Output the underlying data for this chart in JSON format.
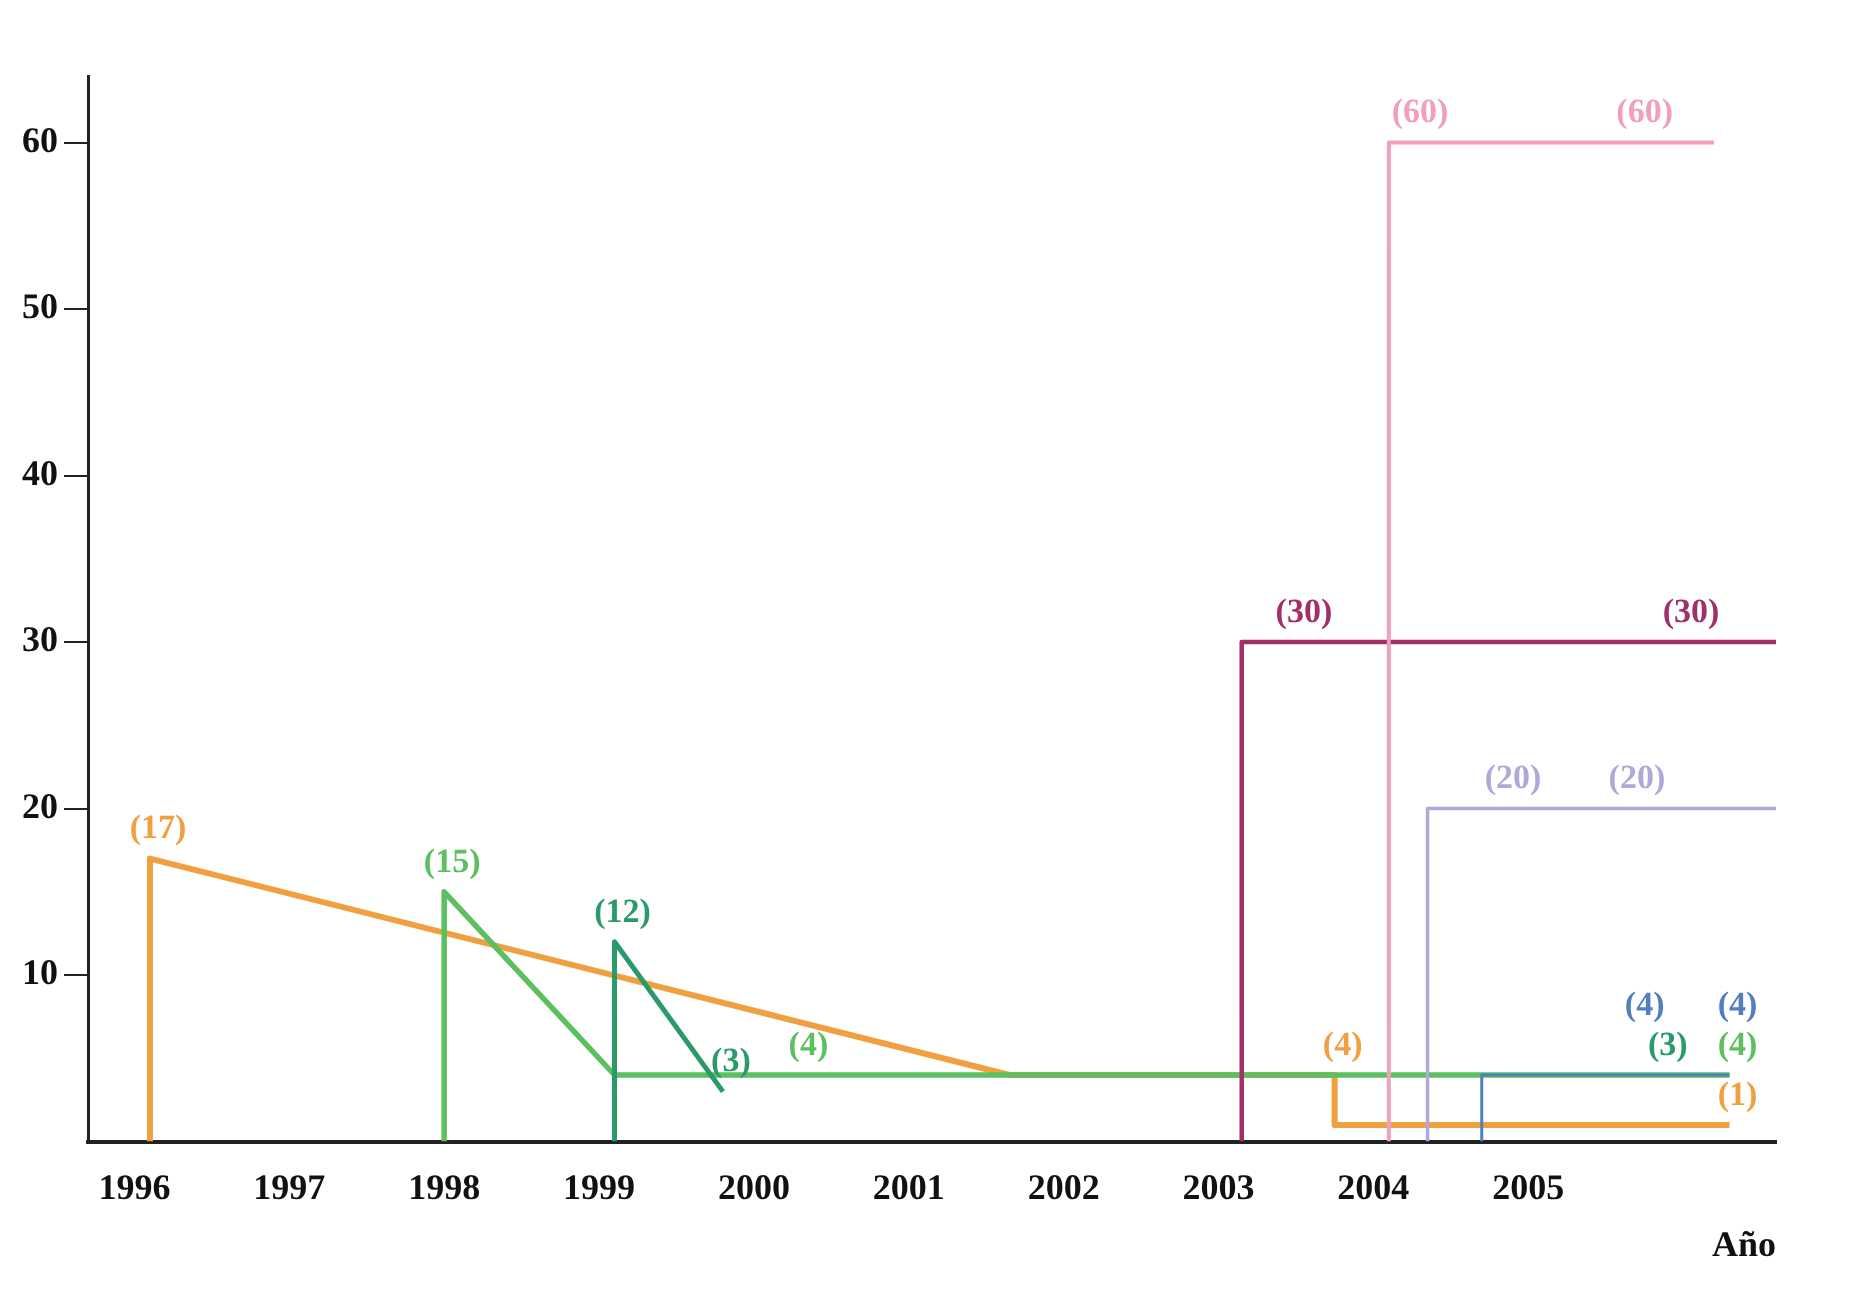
{
  "chart_data": {
    "type": "line",
    "xlabel": "Año",
    "marker": "none",
    "grid": false,
    "legend": false,
    "xlim": [
      1995.7,
      2006.6
    ],
    "xticks": [
      1996,
      1997,
      1998,
      1999,
      2000,
      2001,
      2002,
      2003,
      2004,
      2005
    ],
    "ylim": [
      0,
      64
    ],
    "yticks": [
      10,
      20,
      30,
      40,
      50,
      60
    ],
    "annotations": [
      {
        "text": "(3)",
        "x": 2005.85,
        "y": 4
      }
    ],
    "series": [
      {
        "color": "#f0a040",
        "x": [
          1996.1,
          1996.1,
          2001.65,
          2003.75,
          2003.75,
          2006.3
        ],
        "values": [
          0,
          17,
          4,
          4,
          1,
          1
        ],
        "value_labels": [
          null,
          "(17)",
          null,
          "(4)",
          null,
          "(1)"
        ]
      },
      {
        "color": "#5cc060",
        "x": [
          1998,
          1998,
          1999.1,
          2000.3,
          2006.3
        ],
        "values": [
          0,
          15,
          4,
          4,
          4
        ],
        "value_labels": [
          null,
          "(15)",
          null,
          "(4)",
          "(4)"
        ]
      },
      {
        "color": "#2a9a6a",
        "x": [
          1999.1,
          1999.1,
          1999.8
        ],
        "values": [
          0,
          12,
          3
        ],
        "value_labels": [
          null,
          "(12)",
          "(3)"
        ]
      },
      {
        "color": "#a0306a",
        "x": [
          2003.15,
          2003.15,
          2003.5,
          2006.0,
          2006.6
        ],
        "values": [
          0,
          30,
          30,
          30,
          30
        ],
        "value_labels": [
          null,
          null,
          "(30)",
          "(30)",
          null
        ]
      },
      {
        "color": "#f0a0b8",
        "x": [
          2004.1,
          2004.1,
          2004.25,
          2005.7,
          2006.2
        ],
        "values": [
          0,
          60,
          60,
          60,
          60
        ],
        "value_labels": [
          null,
          null,
          "(60)",
          "(60)",
          null
        ]
      },
      {
        "color": "#b0a8d8",
        "x": [
          2004.35,
          2004.35,
          2004.85,
          2005.65,
          2006.6
        ],
        "values": [
          0,
          20,
          20,
          20,
          20
        ],
        "value_labels": [
          null,
          null,
          "(20)",
          "(20)",
          null
        ]
      },
      {
        "color": "#5080c0",
        "x": [
          2004.7,
          2004.7,
          2005.7,
          2006.3
        ],
        "values": [
          0,
          4,
          4,
          4
        ],
        "value_labels": [
          null,
          null,
          "(4)",
          "(4)"
        ]
      }
    ]
  }
}
